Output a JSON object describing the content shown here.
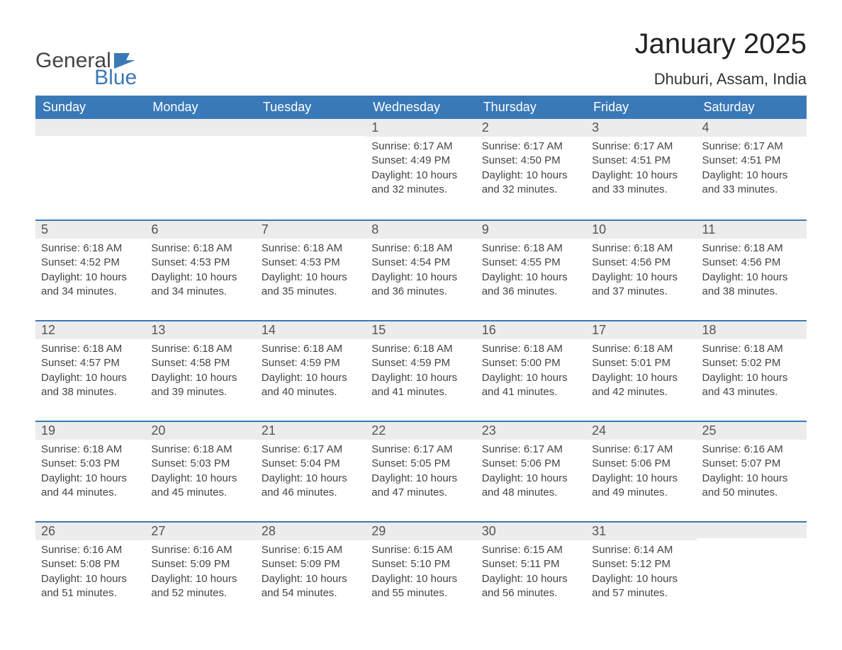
{
  "logo": {
    "word1": "General",
    "word2": "Blue",
    "text_color": "#444444",
    "blue_color": "#3a79b7"
  },
  "title": "January 2025",
  "location": "Dhuburi, Assam, India",
  "colors": {
    "header_bg": "#3a79b7",
    "header_text": "#ffffff",
    "daynum_bg": "#ececec",
    "daynum_border": "#3a79b7",
    "body_bg": "#ffffff",
    "text": "#333333"
  },
  "weekdays": [
    "Sunday",
    "Monday",
    "Tuesday",
    "Wednesday",
    "Thursday",
    "Friday",
    "Saturday"
  ],
  "weeks": [
    [
      null,
      null,
      null,
      {
        "n": "1",
        "sr": "Sunrise: 6:17 AM",
        "ss": "Sunset: 4:49 PM",
        "dl": "Daylight: 10 hours and 32 minutes."
      },
      {
        "n": "2",
        "sr": "Sunrise: 6:17 AM",
        "ss": "Sunset: 4:50 PM",
        "dl": "Daylight: 10 hours and 32 minutes."
      },
      {
        "n": "3",
        "sr": "Sunrise: 6:17 AM",
        "ss": "Sunset: 4:51 PM",
        "dl": "Daylight: 10 hours and 33 minutes."
      },
      {
        "n": "4",
        "sr": "Sunrise: 6:17 AM",
        "ss": "Sunset: 4:51 PM",
        "dl": "Daylight: 10 hours and 33 minutes."
      }
    ],
    [
      {
        "n": "5",
        "sr": "Sunrise: 6:18 AM",
        "ss": "Sunset: 4:52 PM",
        "dl": "Daylight: 10 hours and 34 minutes."
      },
      {
        "n": "6",
        "sr": "Sunrise: 6:18 AM",
        "ss": "Sunset: 4:53 PM",
        "dl": "Daylight: 10 hours and 34 minutes."
      },
      {
        "n": "7",
        "sr": "Sunrise: 6:18 AM",
        "ss": "Sunset: 4:53 PM",
        "dl": "Daylight: 10 hours and 35 minutes."
      },
      {
        "n": "8",
        "sr": "Sunrise: 6:18 AM",
        "ss": "Sunset: 4:54 PM",
        "dl": "Daylight: 10 hours and 36 minutes."
      },
      {
        "n": "9",
        "sr": "Sunrise: 6:18 AM",
        "ss": "Sunset: 4:55 PM",
        "dl": "Daylight: 10 hours and 36 minutes."
      },
      {
        "n": "10",
        "sr": "Sunrise: 6:18 AM",
        "ss": "Sunset: 4:56 PM",
        "dl": "Daylight: 10 hours and 37 minutes."
      },
      {
        "n": "11",
        "sr": "Sunrise: 6:18 AM",
        "ss": "Sunset: 4:56 PM",
        "dl": "Daylight: 10 hours and 38 minutes."
      }
    ],
    [
      {
        "n": "12",
        "sr": "Sunrise: 6:18 AM",
        "ss": "Sunset: 4:57 PM",
        "dl": "Daylight: 10 hours and 38 minutes."
      },
      {
        "n": "13",
        "sr": "Sunrise: 6:18 AM",
        "ss": "Sunset: 4:58 PM",
        "dl": "Daylight: 10 hours and 39 minutes."
      },
      {
        "n": "14",
        "sr": "Sunrise: 6:18 AM",
        "ss": "Sunset: 4:59 PM",
        "dl": "Daylight: 10 hours and 40 minutes."
      },
      {
        "n": "15",
        "sr": "Sunrise: 6:18 AM",
        "ss": "Sunset: 4:59 PM",
        "dl": "Daylight: 10 hours and 41 minutes."
      },
      {
        "n": "16",
        "sr": "Sunrise: 6:18 AM",
        "ss": "Sunset: 5:00 PM",
        "dl": "Daylight: 10 hours and 41 minutes."
      },
      {
        "n": "17",
        "sr": "Sunrise: 6:18 AM",
        "ss": "Sunset: 5:01 PM",
        "dl": "Daylight: 10 hours and 42 minutes."
      },
      {
        "n": "18",
        "sr": "Sunrise: 6:18 AM",
        "ss": "Sunset: 5:02 PM",
        "dl": "Daylight: 10 hours and 43 minutes."
      }
    ],
    [
      {
        "n": "19",
        "sr": "Sunrise: 6:18 AM",
        "ss": "Sunset: 5:03 PM",
        "dl": "Daylight: 10 hours and 44 minutes."
      },
      {
        "n": "20",
        "sr": "Sunrise: 6:18 AM",
        "ss": "Sunset: 5:03 PM",
        "dl": "Daylight: 10 hours and 45 minutes."
      },
      {
        "n": "21",
        "sr": "Sunrise: 6:17 AM",
        "ss": "Sunset: 5:04 PM",
        "dl": "Daylight: 10 hours and 46 minutes."
      },
      {
        "n": "22",
        "sr": "Sunrise: 6:17 AM",
        "ss": "Sunset: 5:05 PM",
        "dl": "Daylight: 10 hours and 47 minutes."
      },
      {
        "n": "23",
        "sr": "Sunrise: 6:17 AM",
        "ss": "Sunset: 5:06 PM",
        "dl": "Daylight: 10 hours and 48 minutes."
      },
      {
        "n": "24",
        "sr": "Sunrise: 6:17 AM",
        "ss": "Sunset: 5:06 PM",
        "dl": "Daylight: 10 hours and 49 minutes."
      },
      {
        "n": "25",
        "sr": "Sunrise: 6:16 AM",
        "ss": "Sunset: 5:07 PM",
        "dl": "Daylight: 10 hours and 50 minutes."
      }
    ],
    [
      {
        "n": "26",
        "sr": "Sunrise: 6:16 AM",
        "ss": "Sunset: 5:08 PM",
        "dl": "Daylight: 10 hours and 51 minutes."
      },
      {
        "n": "27",
        "sr": "Sunrise: 6:16 AM",
        "ss": "Sunset: 5:09 PM",
        "dl": "Daylight: 10 hours and 52 minutes."
      },
      {
        "n": "28",
        "sr": "Sunrise: 6:15 AM",
        "ss": "Sunset: 5:09 PM",
        "dl": "Daylight: 10 hours and 54 minutes."
      },
      {
        "n": "29",
        "sr": "Sunrise: 6:15 AM",
        "ss": "Sunset: 5:10 PM",
        "dl": "Daylight: 10 hours and 55 minutes."
      },
      {
        "n": "30",
        "sr": "Sunrise: 6:15 AM",
        "ss": "Sunset: 5:11 PM",
        "dl": "Daylight: 10 hours and 56 minutes."
      },
      {
        "n": "31",
        "sr": "Sunrise: 6:14 AM",
        "ss": "Sunset: 5:12 PM",
        "dl": "Daylight: 10 hours and 57 minutes."
      },
      null
    ]
  ]
}
